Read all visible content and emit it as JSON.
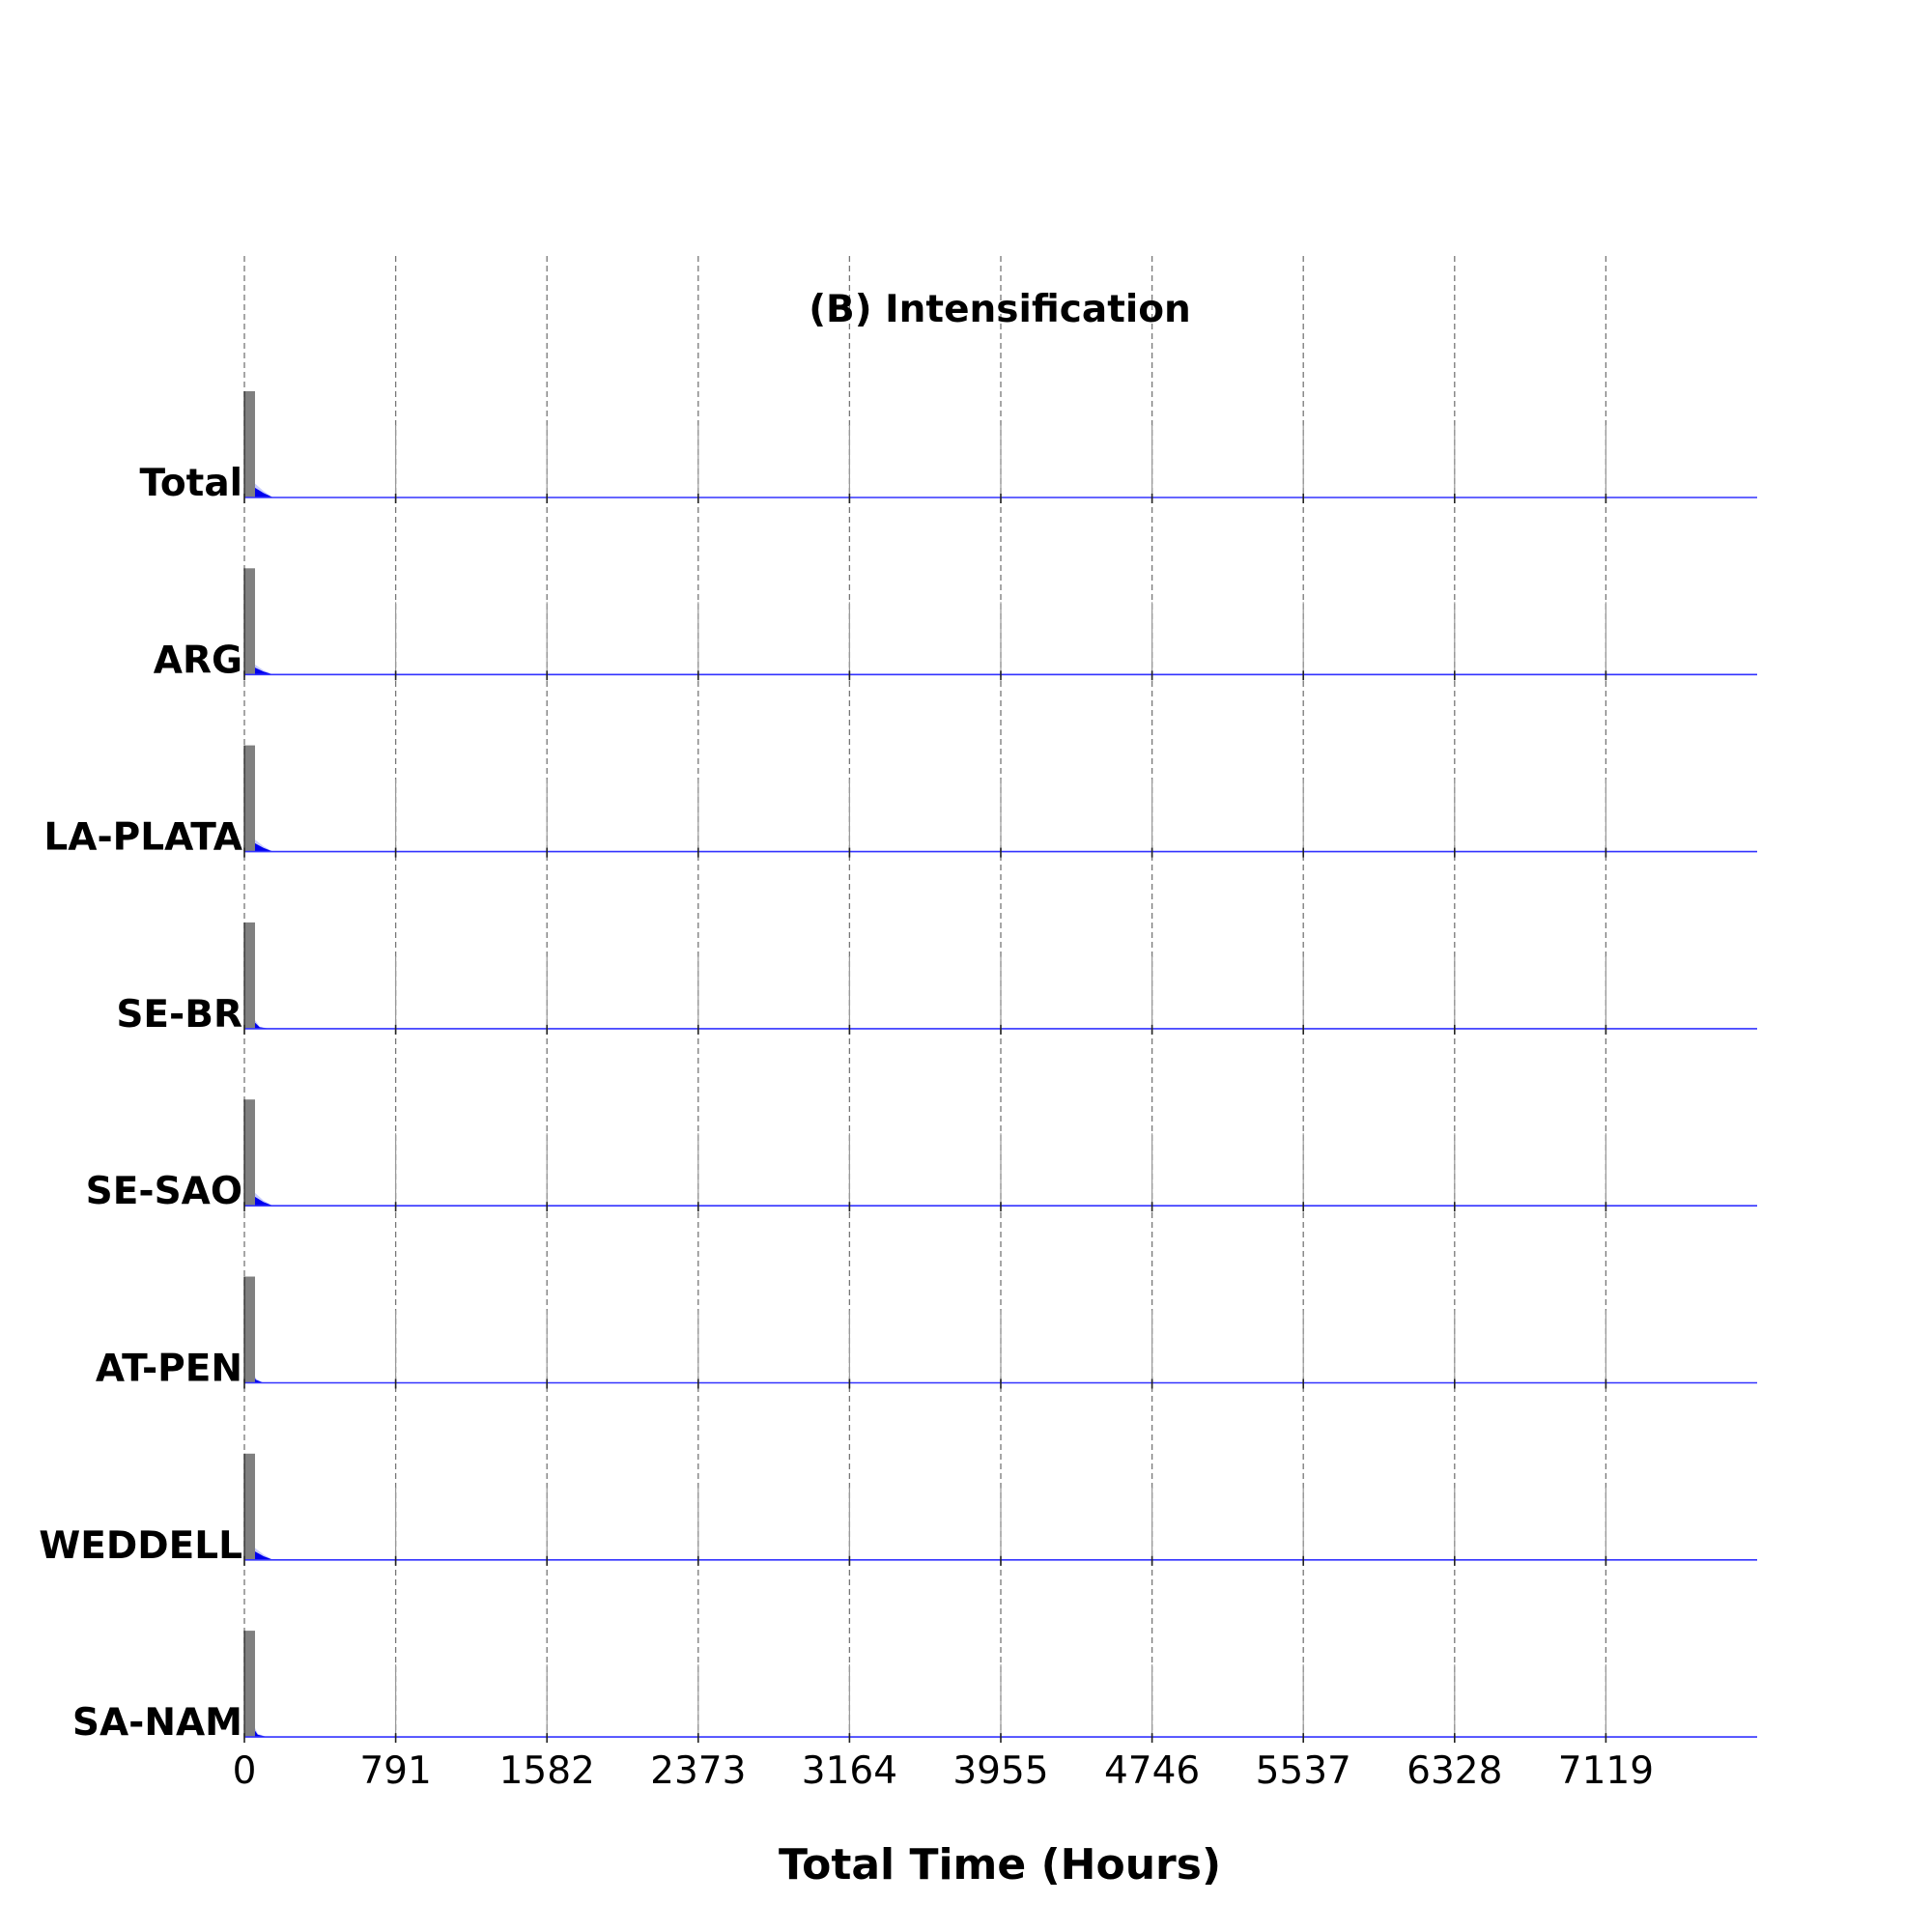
{
  "chart_data": {
    "type": "area",
    "title": "(B) Intensification",
    "xlabel": "Total Time (Hours)",
    "ylabel": "",
    "xlim": [
      0,
      7910
    ],
    "x_ticks": [
      0,
      791,
      1582,
      2373,
      3164,
      3955,
      4746,
      5537,
      6328,
      7119
    ],
    "grid": "vertical dashed",
    "rows": [
      {
        "label": "Total",
        "bar_x": 25,
        "bar_height": 1.0,
        "area": [
          [
            0,
            0.15
          ],
          [
            50,
            0.14
          ],
          [
            100,
            0.06
          ],
          [
            150,
            0.0
          ]
        ]
      },
      {
        "label": "ARG",
        "bar_x": 25,
        "bar_height": 1.0,
        "area": [
          [
            0,
            0.12
          ],
          [
            50,
            0.1
          ],
          [
            100,
            0.04
          ],
          [
            150,
            0.0
          ]
        ]
      },
      {
        "label": "LA-PLATA",
        "bar_x": 25,
        "bar_height": 1.0,
        "area": [
          [
            0,
            0.15
          ],
          [
            50,
            0.12
          ],
          [
            100,
            0.05
          ],
          [
            150,
            0.0
          ]
        ]
      },
      {
        "label": "SE-BR",
        "bar_x": 25,
        "bar_height": 1.0,
        "area": [
          [
            0,
            0.25
          ],
          [
            40,
            0.12
          ],
          [
            80,
            0.02
          ],
          [
            130,
            0.0
          ]
        ]
      },
      {
        "label": "SE-SAO",
        "bar_x": 25,
        "bar_height": 1.0,
        "area": [
          [
            0,
            0.15
          ],
          [
            50,
            0.13
          ],
          [
            100,
            0.05
          ],
          [
            150,
            0.0
          ]
        ]
      },
      {
        "label": "AT-PEN",
        "bar_x": 25,
        "bar_height": 1.0,
        "area": [
          [
            0,
            0.3
          ],
          [
            30,
            0.2
          ],
          [
            60,
            0.04
          ],
          [
            100,
            0.0
          ]
        ]
      },
      {
        "label": "WEDDELL",
        "bar_x": 25,
        "bar_height": 1.0,
        "area": [
          [
            0,
            0.13
          ],
          [
            50,
            0.12
          ],
          [
            100,
            0.05
          ],
          [
            150,
            0.0
          ]
        ]
      },
      {
        "label": "SA-NAM",
        "bar_x": 25,
        "bar_height": 1.0,
        "area": [
          [
            0,
            0.25
          ],
          [
            30,
            0.18
          ],
          [
            70,
            0.03
          ],
          [
            120,
            0.0
          ]
        ]
      }
    ]
  }
}
